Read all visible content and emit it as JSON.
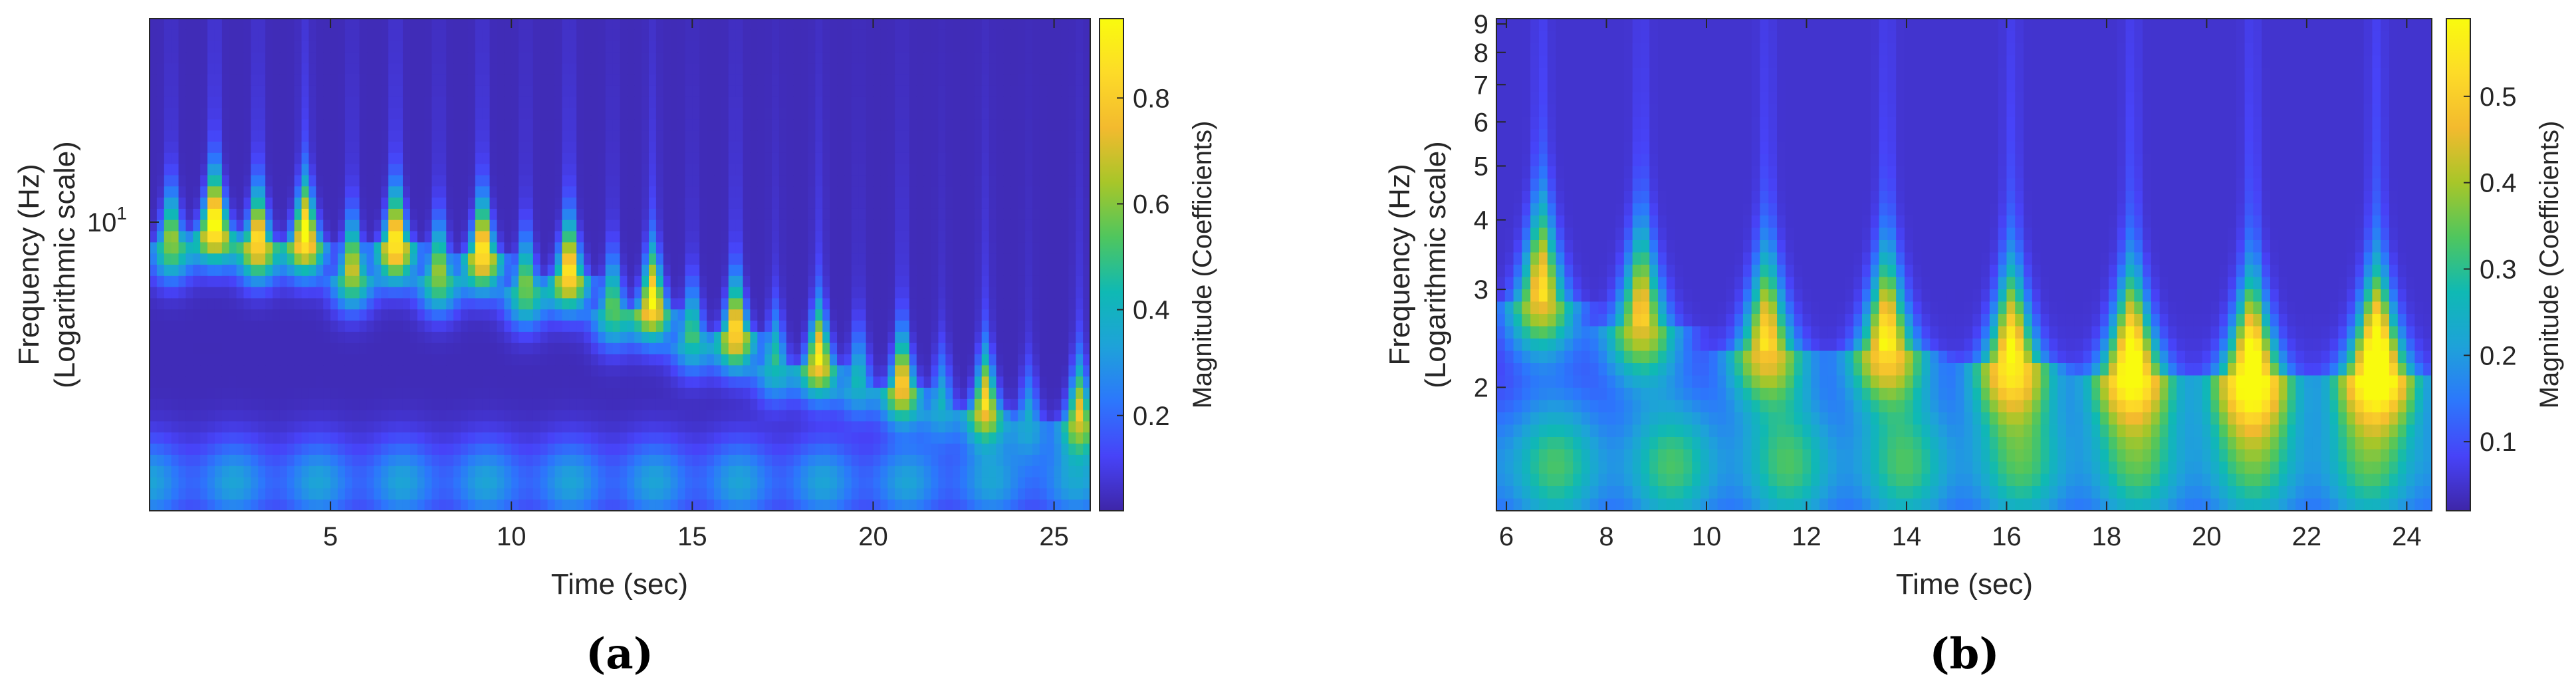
{
  "colormap": "parula",
  "colormap_stops": [
    "#3e26a8",
    "#4743f8",
    "#2c77fc",
    "#1ea2d9",
    "#0fb9b4",
    "#4fc65e",
    "#a7c629",
    "#f3ba2e",
    "#fddb28",
    "#f9fb0e"
  ],
  "grid": false,
  "chart_data": [
    {
      "type": "heatmap",
      "caption": "(a)",
      "xlabel": "Time (sec)",
      "ylabel": [
        "Frequency (Hz)",
        "(Logarithmic scale)"
      ],
      "yscale": "log",
      "xlim": [
        0,
        26
      ],
      "ylim": [
        1.4,
        40
      ],
      "x_ticks": [
        5,
        10,
        15,
        20,
        25
      ],
      "x_tick_labels": [
        "5",
        "10",
        "15",
        "20",
        "25"
      ],
      "y_ticks": [
        10
      ],
      "y_tick_labels": [
        "10^1"
      ],
      "colorbar": {
        "label": "Magnitude (Coefficients)",
        "range": [
          0.02,
          0.95
        ],
        "ticks": [
          0.2,
          0.4,
          0.6,
          0.8
        ],
        "tick_labels": [
          "0.2",
          "0.4",
          "0.6",
          "0.8"
        ]
      },
      "background_level": 0.04,
      "components": [
        {
          "t": 0.6,
          "f": 8.5,
          "mag": 0.55,
          "sigma_t": 0.28
        },
        {
          "t": 1.8,
          "f": 9.6,
          "mag": 0.9,
          "sigma_t": 0.28
        },
        {
          "t": 3.0,
          "f": 8.5,
          "mag": 0.78,
          "sigma_t": 0.28
        },
        {
          "t": 4.3,
          "f": 8.8,
          "mag": 0.85,
          "sigma_t": 0.28
        },
        {
          "t": 5.6,
          "f": 7.0,
          "mag": 0.6,
          "sigma_t": 0.28
        },
        {
          "t": 6.8,
          "f": 8.4,
          "mag": 0.85,
          "sigma_t": 0.28
        },
        {
          "t": 8.0,
          "f": 6.8,
          "mag": 0.55,
          "sigma_t": 0.28
        },
        {
          "t": 9.2,
          "f": 7.9,
          "mag": 0.82,
          "sigma_t": 0.28
        },
        {
          "t": 10.4,
          "f": 6.2,
          "mag": 0.52,
          "sigma_t": 0.28
        },
        {
          "t": 11.6,
          "f": 6.9,
          "mag": 0.8,
          "sigma_t": 0.28
        },
        {
          "t": 12.8,
          "f": 5.4,
          "mag": 0.48,
          "sigma_t": 0.28
        },
        {
          "t": 13.9,
          "f": 5.6,
          "mag": 0.8,
          "sigma_t": 0.28
        },
        {
          "t": 15.0,
          "f": 4.5,
          "mag": 0.42,
          "sigma_t": 0.28
        },
        {
          "t": 16.2,
          "f": 4.6,
          "mag": 0.78,
          "sigma_t": 0.28
        },
        {
          "t": 17.3,
          "f": 3.7,
          "mag": 0.38,
          "sigma_t": 0.28
        },
        {
          "t": 18.5,
          "f": 3.8,
          "mag": 0.75,
          "sigma_t": 0.28
        },
        {
          "t": 19.6,
          "f": 3.3,
          "mag": 0.34,
          "sigma_t": 0.28
        },
        {
          "t": 20.8,
          "f": 3.2,
          "mag": 0.72,
          "sigma_t": 0.28
        },
        {
          "t": 21.9,
          "f": 2.8,
          "mag": 0.3,
          "sigma_t": 0.28
        },
        {
          "t": 23.1,
          "f": 2.8,
          "mag": 0.7,
          "sigma_t": 0.28
        },
        {
          "t": 24.3,
          "f": 2.5,
          "mag": 0.28,
          "sigma_t": 0.28
        },
        {
          "t": 25.7,
          "f": 2.6,
          "mag": 0.62,
          "sigma_t": 0.28
        }
      ],
      "low_band": {
        "f": 1.7,
        "mag": 0.3
      }
    },
    {
      "type": "heatmap",
      "caption": "(b)",
      "xlabel": "Time (sec)",
      "ylabel": [
        "Frequency (Hz)",
        "(Logarithmic scale)"
      ],
      "yscale": "log",
      "xlim": [
        5.8,
        24.5
      ],
      "ylim": [
        1.2,
        9.2
      ],
      "x_ticks": [
        6,
        8,
        10,
        12,
        14,
        16,
        18,
        20,
        22,
        24
      ],
      "x_tick_labels": [
        "6",
        "8",
        "10",
        "12",
        "14",
        "16",
        "18",
        "20",
        "22",
        "24"
      ],
      "y_ticks": [
        2,
        3,
        4,
        5,
        6,
        7,
        8,
        9
      ],
      "y_tick_labels": [
        "2",
        "3",
        "4",
        "5",
        "6",
        "7",
        "8",
        "9"
      ],
      "colorbar": {
        "label": "Magnitude (Coefficients)",
        "range": [
          0.02,
          0.59
        ],
        "ticks": [
          0.1,
          0.2,
          0.3,
          0.4,
          0.5
        ],
        "tick_labels": [
          "0.1",
          "0.2",
          "0.3",
          "0.4",
          "0.5"
        ]
      },
      "background_level": 0.05,
      "components": [
        {
          "t": 6.7,
          "f": 2.9,
          "mag": 0.42,
          "sigma_t": 0.35
        },
        {
          "t": 8.7,
          "f": 2.6,
          "mag": 0.4,
          "sigma_t": 0.38
        },
        {
          "t": 11.2,
          "f": 2.35,
          "mag": 0.42,
          "sigma_t": 0.4
        },
        {
          "t": 13.6,
          "f": 2.35,
          "mag": 0.46,
          "sigma_t": 0.4
        },
        {
          "t": 16.1,
          "f": 2.2,
          "mag": 0.48,
          "sigma_t": 0.4
        },
        {
          "t": 18.5,
          "f": 2.15,
          "mag": 0.52,
          "sigma_t": 0.42
        },
        {
          "t": 20.9,
          "f": 2.1,
          "mag": 0.53,
          "sigma_t": 0.42
        },
        {
          "t": 23.4,
          "f": 2.15,
          "mag": 0.58,
          "sigma_t": 0.42
        }
      ],
      "low_band": {
        "f": 1.45,
        "mag": 0.28
      }
    }
  ]
}
